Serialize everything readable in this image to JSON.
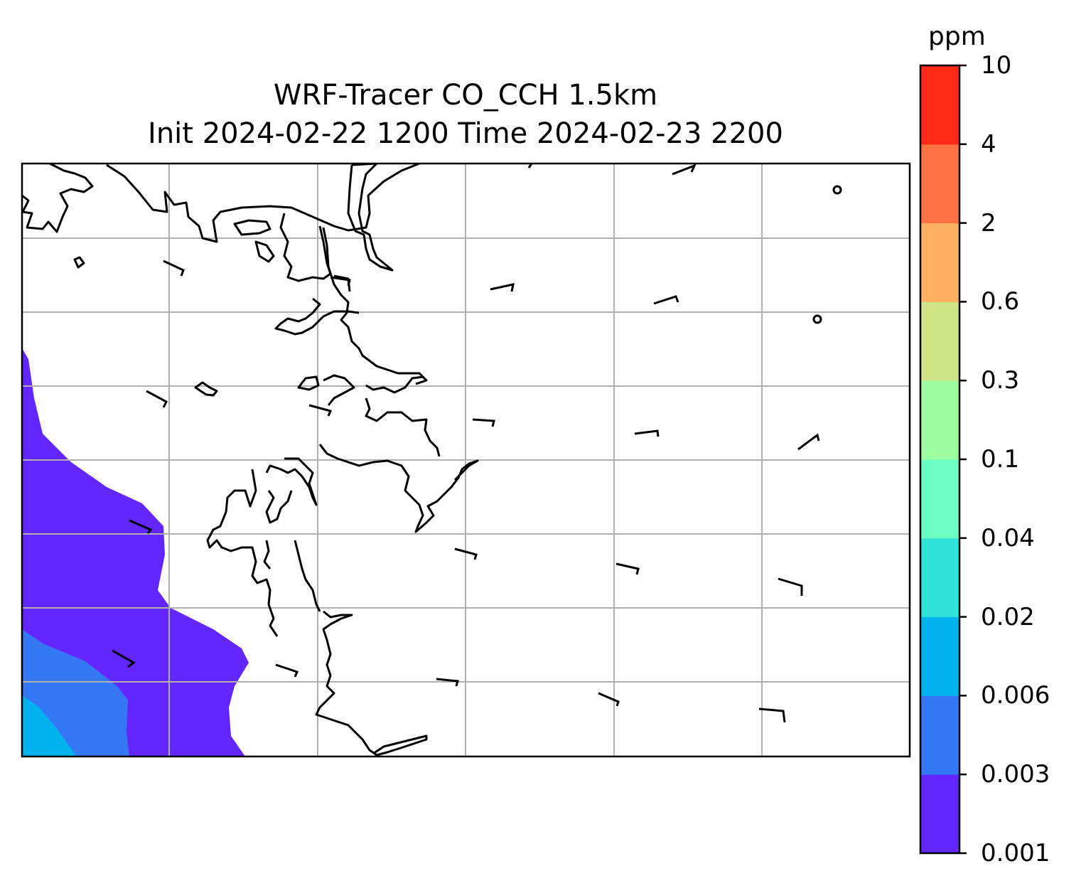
{
  "figure": {
    "title_line1": "WRF-Tracer CO_CCH 1.5km",
    "title_line2": "Init 2024-02-22 1200 Time 2024-02-23 2200"
  },
  "colorbar": {
    "unit": "ppm",
    "levels": [
      "0.001",
      "0.003",
      "0.006",
      "0.02",
      "0.04",
      "0.1",
      "0.3",
      "0.6",
      "2",
      "4",
      "10"
    ],
    "colors": [
      "#6326ff",
      "#3577f5",
      "#00b3ee",
      "#31e2d6",
      "#6affc0",
      "#9cffa0",
      "#cfe487",
      "#feb163",
      "#ff7140",
      "#ff2a18"
    ]
  },
  "map": {
    "gridlines": true,
    "gridline_color": "#b0b0b0",
    "coastline_color": "#000000",
    "field": "CO_CCH tracer concentration",
    "features": [
      "coastline-icon",
      "wind-barb-icon"
    ]
  }
}
